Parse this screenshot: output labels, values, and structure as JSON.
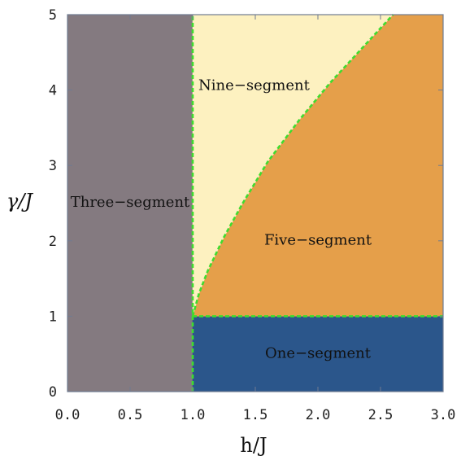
{
  "chart_data": {
    "type": "region",
    "xlabel": "h/J",
    "ylabel": "γ/J",
    "xlim": [
      0,
      3
    ],
    "ylim": [
      0,
      5
    ],
    "x_ticks": [
      "0.0",
      "0.5",
      "1.0",
      "1.5",
      "2.0",
      "2.5",
      "3.0"
    ],
    "x_tick_values": [
      0,
      0.5,
      1,
      1.5,
      2,
      2.5,
      3
    ],
    "y_ticks": [
      "0",
      "1",
      "2",
      "3",
      "4",
      "5"
    ],
    "y_tick_values": [
      0,
      1,
      2,
      3,
      4,
      5
    ],
    "regions": [
      {
        "label": "Three−segment",
        "color": "#847a80",
        "polygon": [
          [
            0,
            0
          ],
          [
            1,
            0
          ],
          [
            1,
            5
          ],
          [
            0,
            5
          ]
        ],
        "label_at": [
          0.5,
          2.45
        ]
      },
      {
        "label": "One−segment",
        "color": "#2b568b",
        "polygon": [
          [
            1,
            0
          ],
          [
            3,
            0
          ],
          [
            3,
            1
          ],
          [
            1,
            1
          ]
        ],
        "label_at": [
          2.0,
          0.45
        ]
      },
      {
        "label": "Five−segment",
        "color": "#e59f4a",
        "polygon": [
          [
            1,
            1
          ],
          [
            3,
            1
          ],
          [
            3,
            5
          ],
          [
            2.6,
            5
          ],
          [
            2.35,
            4.55
          ],
          [
            2.1,
            4.1
          ],
          [
            1.85,
            3.6
          ],
          [
            1.6,
            3.05
          ],
          [
            1.4,
            2.5
          ],
          [
            1.25,
            2.05
          ],
          [
            1.12,
            1.6
          ],
          [
            1.05,
            1.3
          ],
          [
            1.0,
            1.0
          ]
        ],
        "label_at": [
          2.0,
          1.95
        ]
      },
      {
        "label": "Nine−segment",
        "color": "#fdf1c0",
        "polygon": [
          [
            1,
            1
          ],
          [
            1,
            5
          ],
          [
            2.6,
            5
          ],
          [
            2.35,
            4.55
          ],
          [
            2.1,
            4.1
          ],
          [
            1.85,
            3.6
          ],
          [
            1.6,
            3.05
          ],
          [
            1.4,
            2.5
          ],
          [
            1.25,
            2.05
          ],
          [
            1.12,
            1.6
          ],
          [
            1.05,
            1.3
          ],
          [
            1.0,
            1.0
          ]
        ],
        "label_at": [
          1.49,
          4.0
        ]
      }
    ],
    "boundaries": [
      {
        "color": "#3fdc2f",
        "style": "dashed",
        "points": [
          [
            1,
            0
          ],
          [
            1,
            5
          ]
        ]
      },
      {
        "color": "#3fdc2f",
        "style": "dashed",
        "points": [
          [
            1,
            1
          ],
          [
            3,
            1
          ]
        ]
      },
      {
        "color": "#3fdc2f",
        "style": "dashed",
        "points": [
          [
            1.0,
            1.0
          ],
          [
            1.05,
            1.3
          ],
          [
            1.12,
            1.6
          ],
          [
            1.25,
            2.05
          ],
          [
            1.4,
            2.5
          ],
          [
            1.6,
            3.05
          ],
          [
            1.85,
            3.6
          ],
          [
            2.1,
            4.1
          ],
          [
            2.35,
            4.55
          ],
          [
            2.6,
            5
          ]
        ]
      }
    ],
    "grid": false,
    "frame_color": "#6f7b91"
  }
}
